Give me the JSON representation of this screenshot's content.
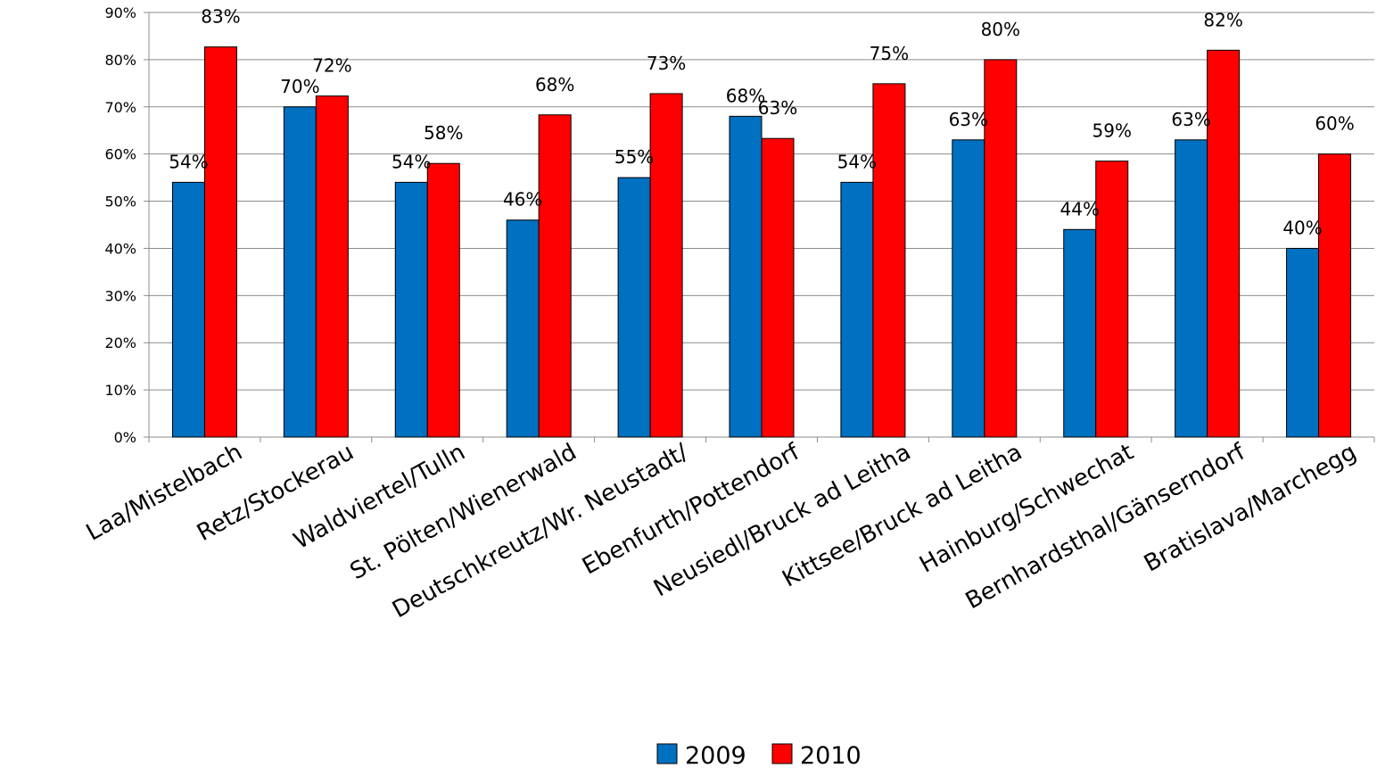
{
  "chart_data": {
    "type": "bar",
    "categories": [
      "Laa/Mistelbach",
      "Retz/Stockerau",
      "Waldviertel/Tulln",
      "St. Pölten/Wienerwald",
      "Deutschkreutz/Wr. Neustadt/",
      "Ebenfurth/Pottendorf",
      "Neusiedl/Bruck ad Leitha",
      "Kittsee/Bruck ad Leitha",
      "Hainburg/Schwechat",
      "Bernhardsthal/Gänserndorf",
      "Bratislava/Marchegg"
    ],
    "series": [
      {
        "name": "2009",
        "color": "#0070c0",
        "values": [
          54,
          70,
          54,
          46,
          55,
          68,
          54,
          63,
          44,
          63,
          40
        ],
        "labels": [
          "54%",
          "70%",
          "54%",
          "46%",
          "55%",
          "68%",
          "54%",
          "63%",
          "44%",
          "63%",
          "40%"
        ]
      },
      {
        "name": "2010",
        "color": "#ff0000",
        "values": [
          82.7,
          72.3,
          58,
          68.3,
          72.8,
          63.3,
          74.9,
          80,
          58.5,
          82,
          60
        ],
        "labels": [
          "83%",
          "72%",
          "58%",
          "68%",
          "73%",
          "63%",
          "75%",
          "80%",
          "59%",
          "82%",
          "60%"
        ]
      }
    ],
    "yticks": [
      "0%",
      "10%",
      "20%",
      "30%",
      "40%",
      "50%",
      "60%",
      "70%",
      "80%",
      "90%"
    ],
    "ylim": [
      0,
      90
    ],
    "grid": true,
    "legend": "bottom-center",
    "title": "",
    "xlabel": "",
    "ylabel": ""
  }
}
